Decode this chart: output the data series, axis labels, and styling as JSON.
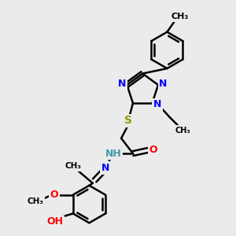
{
  "bg_color": "#ebebeb",
  "line_color": "#000000",
  "bond_width": 1.8,
  "atom_colors": {
    "N": "#0000ff",
    "O": "#ff0000",
    "S": "#999900",
    "H": "#4499aa",
    "C": "#000000"
  },
  "font_size": 8.5,
  "figsize": [
    3.0,
    3.0
  ],
  "dpi": 100,
  "xlim": [
    0,
    10
  ],
  "ylim": [
    0,
    10
  ]
}
